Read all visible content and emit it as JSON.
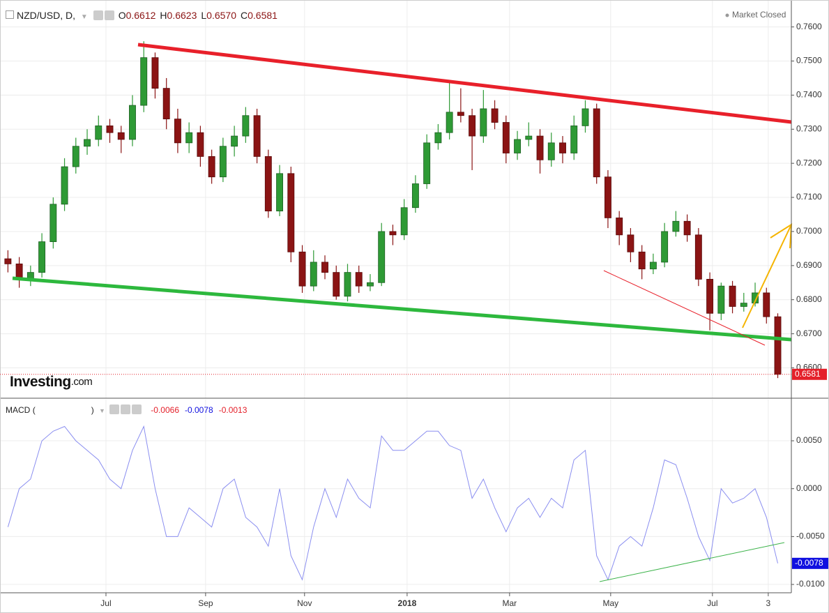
{
  "chart_data": [
    {
      "type": "candlestick",
      "symbol": "NZD/USD, D,",
      "ohlc_keys": [
        "O",
        "H",
        "L",
        "C"
      ],
      "ohlc_values": [
        0.6612,
        0.6623,
        0.657,
        0.6581
      ],
      "ohlc_value_labels": [
        "0.6612",
        "0.6623",
        "0.6570",
        "0.6581"
      ],
      "status": "Market Closed",
      "logo": "Investing",
      "logo_suffix": ".com",
      "up_color": "#2e9a35",
      "down_color": "#8b1414",
      "last_color": "#e4202a",
      "xlim": [
        -0.7,
        69.2
      ],
      "ylim": [
        0.6511,
        0.7679
      ],
      "yticks": [
        {
          "value": 0.66,
          "label": "0.6600"
        },
        {
          "value": 0.67,
          "label": "0.6700"
        },
        {
          "value": 0.68,
          "label": "0.6800"
        },
        {
          "value": 0.69,
          "label": "0.6900"
        },
        {
          "value": 0.7,
          "label": "0.7000"
        },
        {
          "value": 0.71,
          "label": "0.7100"
        },
        {
          "value": 0.72,
          "label": "0.7200"
        },
        {
          "value": 0.73,
          "label": "0.7300"
        },
        {
          "value": 0.74,
          "label": "0.7400"
        },
        {
          "value": 0.75,
          "label": "0.7500"
        },
        {
          "value": 0.76,
          "label": "0.7600"
        }
      ],
      "grid": true,
      "ohlc": [
        [
          0.692,
          0.6945,
          0.688,
          0.6905
        ],
        [
          0.6905,
          0.6925,
          0.6835,
          0.6862
        ],
        [
          0.6862,
          0.69,
          0.684,
          0.688
        ],
        [
          0.688,
          0.6995,
          0.6865,
          0.697
        ],
        [
          0.697,
          0.71,
          0.695,
          0.708
        ],
        [
          0.708,
          0.7215,
          0.706,
          0.719
        ],
        [
          0.719,
          0.7275,
          0.717,
          0.725
        ],
        [
          0.725,
          0.73,
          0.7225,
          0.727
        ],
        [
          0.727,
          0.734,
          0.725,
          0.731
        ],
        [
          0.731,
          0.733,
          0.726,
          0.729
        ],
        [
          0.729,
          0.731,
          0.723,
          0.727
        ],
        [
          0.727,
          0.74,
          0.725,
          0.737
        ],
        [
          0.737,
          0.7558,
          0.735,
          0.751
        ],
        [
          0.751,
          0.7525,
          0.739,
          0.742
        ],
        [
          0.742,
          0.745,
          0.73,
          0.733
        ],
        [
          0.733,
          0.736,
          0.723,
          0.726
        ],
        [
          0.726,
          0.732,
          0.723,
          0.729
        ],
        [
          0.729,
          0.731,
          0.719,
          0.722
        ],
        [
          0.722,
          0.724,
          0.714,
          0.716
        ],
        [
          0.716,
          0.7275,
          0.7145,
          0.725
        ],
        [
          0.725,
          0.731,
          0.722,
          0.728
        ],
        [
          0.728,
          0.7365,
          0.726,
          0.734
        ],
        [
          0.734,
          0.736,
          0.72,
          0.722
        ],
        [
          0.722,
          0.724,
          0.704,
          0.706
        ],
        [
          0.706,
          0.7195,
          0.7045,
          0.717
        ],
        [
          0.717,
          0.719,
          0.691,
          0.694
        ],
        [
          0.694,
          0.696,
          0.682,
          0.684
        ],
        [
          0.684,
          0.6945,
          0.6825,
          0.691
        ],
        [
          0.691,
          0.693,
          0.686,
          0.688
        ],
        [
          0.688,
          0.69,
          0.68,
          0.681
        ],
        [
          0.681,
          0.6905,
          0.6795,
          0.688
        ],
        [
          0.688,
          0.69,
          0.682,
          0.684
        ],
        [
          0.684,
          0.6875,
          0.6825,
          0.685
        ],
        [
          0.685,
          0.7025,
          0.684,
          0.7
        ],
        [
          0.7,
          0.702,
          0.696,
          0.699
        ],
        [
          0.699,
          0.7095,
          0.6975,
          0.707
        ],
        [
          0.707,
          0.7165,
          0.7055,
          0.714
        ],
        [
          0.714,
          0.7285,
          0.7125,
          0.726
        ],
        [
          0.726,
          0.7315,
          0.724,
          0.729
        ],
        [
          0.729,
          0.744,
          0.727,
          0.735
        ],
        [
          0.735,
          0.742,
          0.732,
          0.734
        ],
        [
          0.734,
          0.736,
          0.718,
          0.728
        ],
        [
          0.728,
          0.7415,
          0.726,
          0.736
        ],
        [
          0.736,
          0.7385,
          0.73,
          0.732
        ],
        [
          0.732,
          0.734,
          0.72,
          0.723
        ],
        [
          0.723,
          0.7295,
          0.721,
          0.727
        ],
        [
          0.727,
          0.732,
          0.725,
          0.728
        ],
        [
          0.728,
          0.73,
          0.717,
          0.721
        ],
        [
          0.721,
          0.729,
          0.719,
          0.726
        ],
        [
          0.726,
          0.728,
          0.72,
          0.723
        ],
        [
          0.723,
          0.734,
          0.721,
          0.731
        ],
        [
          0.731,
          0.7385,
          0.729,
          0.736
        ],
        [
          0.736,
          0.7375,
          0.714,
          0.716
        ],
        [
          0.716,
          0.718,
          0.701,
          0.704
        ],
        [
          0.704,
          0.706,
          0.696,
          0.699
        ],
        [
          0.699,
          0.701,
          0.691,
          0.694
        ],
        [
          0.694,
          0.696,
          0.686,
          0.689
        ],
        [
          0.689,
          0.6935,
          0.6875,
          0.691
        ],
        [
          0.691,
          0.7025,
          0.6895,
          0.7
        ],
        [
          0.7,
          0.706,
          0.6985,
          0.703
        ],
        [
          0.703,
          0.705,
          0.697,
          0.699
        ],
        [
          0.699,
          0.701,
          0.684,
          0.686
        ],
        [
          0.686,
          0.688,
          0.671,
          0.676
        ],
        [
          0.676,
          0.685,
          0.674,
          0.684
        ],
        [
          0.684,
          0.6855,
          0.676,
          0.678
        ],
        [
          0.678,
          0.682,
          0.6765,
          0.679
        ],
        [
          0.679,
          0.685,
          0.678,
          0.682
        ],
        [
          0.682,
          0.6835,
          0.673,
          0.675
        ],
        [
          0.675,
          0.676,
          0.657,
          0.6581
        ]
      ]
    },
    {
      "type": "line",
      "name": "MACD",
      "params_open": "(",
      "params_close": ")",
      "legend_values": [
        -0.0066,
        -0.0078,
        -0.0013
      ],
      "legend_colors": [
        "#e4202a",
        "#1010e0",
        "#e4202a"
      ],
      "color": "#8a8ef0",
      "last_color": "#1010e0",
      "xlim": [
        -0.7,
        69.2
      ],
      "xticks": [
        {
          "value": 8.66,
          "label": "Jul"
        },
        {
          "value": 17.46,
          "label": "Sep"
        },
        {
          "value": 26.2,
          "label": "Nov"
        },
        {
          "value": 35.26,
          "label": "2018"
        },
        {
          "value": 44.31,
          "label": "Mar"
        },
        {
          "value": 53.24,
          "label": "May"
        },
        {
          "value": 62.23,
          "label": "Jul"
        },
        {
          "value": 67.16,
          "label": "3"
        }
      ],
      "ylim": [
        -0.01087,
        0.0093
      ],
      "yticks": [
        {
          "value": -0.01,
          "label": "-0.0100"
        },
        {
          "value": -0.005,
          "label": "-0.0050"
        },
        {
          "value": 0,
          "label": "0.0000"
        },
        {
          "value": 0.005,
          "label": "0.0050"
        }
      ],
      "grid": true,
      "values": [
        -0.004,
        0.0,
        0.001,
        0.005,
        0.006,
        0.0065,
        0.005,
        0.004,
        0.003,
        0.001,
        0.0,
        0.004,
        0.0065,
        0.0,
        -0.005,
        -0.005,
        -0.002,
        -0.003,
        -0.004,
        0.0,
        0.001,
        -0.003,
        -0.004,
        -0.006,
        0.0,
        -0.007,
        -0.0095,
        -0.004,
        0.0,
        -0.003,
        0.001,
        -0.001,
        -0.002,
        0.0055,
        0.004,
        0.004,
        0.005,
        0.006,
        0.006,
        0.0045,
        0.004,
        -0.001,
        0.001,
        -0.002,
        -0.0045,
        -0.002,
        -0.001,
        -0.003,
        -0.001,
        -0.002,
        0.003,
        0.004,
        -0.007,
        -0.0095,
        -0.006,
        -0.005,
        -0.006,
        -0.002,
        0.003,
        0.0025,
        -0.001,
        -0.005,
        -0.0075,
        0.0,
        -0.0015,
        -0.001,
        0.0,
        -0.003,
        -0.0078
      ]
    }
  ]
}
